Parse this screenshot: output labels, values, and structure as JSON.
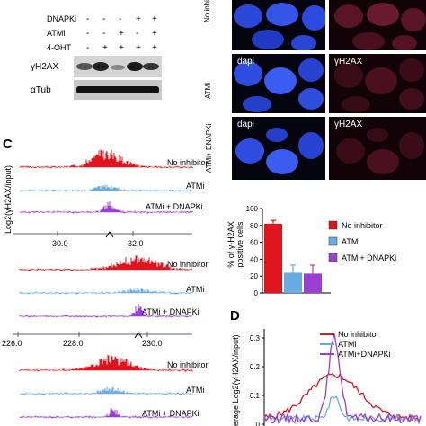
{
  "panel_a": {
    "row_labels": [
      "DNAPKi",
      "ATMi",
      "4-OHT"
    ],
    "signs": [
      [
        "-",
        "-",
        "-",
        "+",
        "+"
      ],
      [
        "-",
        "-",
        "+",
        "-",
        "+"
      ],
      [
        "-",
        "+",
        "+",
        "+",
        "+"
      ]
    ],
    "blot_labels": [
      "γH2AX",
      "αTub"
    ]
  },
  "panel_b": {
    "rows": [
      {
        "side_label": "No inhibit",
        "left_label": "",
        "right_label": ""
      },
      {
        "side_label": "ATMi",
        "left_label": "dapi",
        "right_label": "γH2AX"
      },
      {
        "side_label": "ATMi+ DNAPKi",
        "left_label": "dapi",
        "right_label": "γH2AX"
      }
    ]
  },
  "panel_c": {
    "letter": "C",
    "ylabel": "Log2(γH2AX/input)",
    "track_labels": [
      "No inhibitor",
      "ATMi",
      "ATMi + DNAPKi"
    ],
    "axes": [
      {
        "ticks": [
          "30.0",
          "32.0"
        ]
      },
      {
        "ticks": [
          "226.0",
          "228.0",
          "230.0"
        ]
      }
    ]
  },
  "bar_chart": {
    "chart_data": {
      "type": "bar",
      "categories": [
        "No inhibitor",
        "ATMi",
        "ATMi+ DNAPKi"
      ],
      "values": [
        82,
        24,
        23
      ],
      "errors": [
        4,
        9,
        10
      ],
      "ylabel": "% of γ-H2AX positive cells",
      "ylim": [
        0,
        100
      ],
      "yticks": [
        "0",
        "20",
        "40",
        "60",
        "80",
        "100"
      ],
      "colors": [
        "#e0141c",
        "#6aace2",
        "#9a3fd1"
      ]
    }
  },
  "panel_d": {
    "letter": "D",
    "ylabel": "erage Log2(γH2AX/input)",
    "yticks": [
      "0.3",
      "0.2",
      "0.1",
      "0"
    ],
    "legend": [
      "No inhibitor",
      "ATMi",
      "ATMi+DNAPKi"
    ],
    "colors": [
      "#e0141c",
      "#6aace2",
      "#9a3fd1"
    ]
  }
}
